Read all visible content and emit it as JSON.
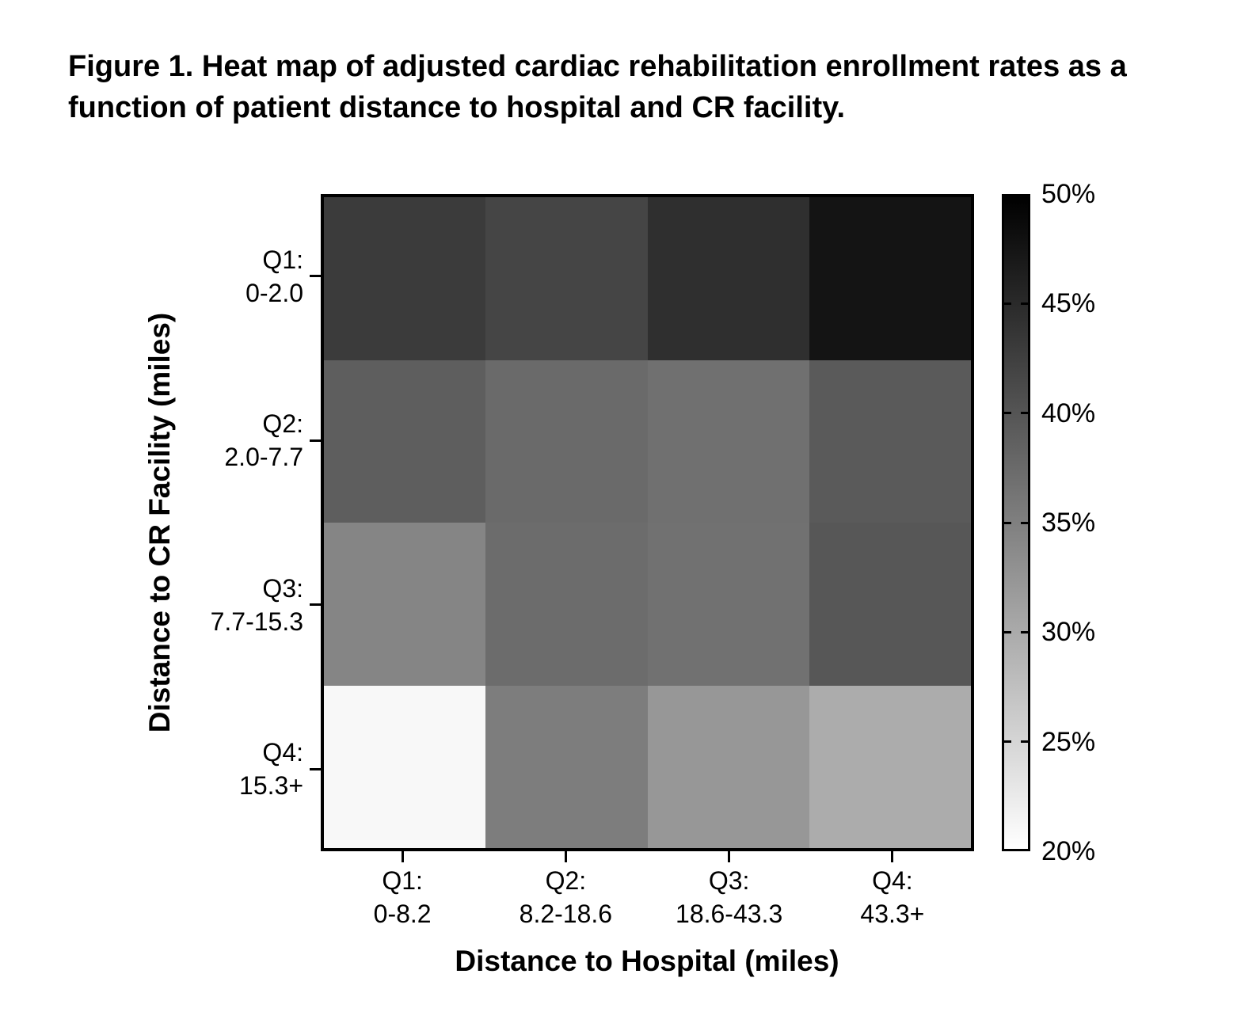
{
  "chart_data": {
    "type": "heatmap",
    "title": "Figure 1. Heat map of adjusted cardiac rehabilitation enrollment rates as a function of patient distance to hospital and CR facility.",
    "xlabel": "Distance to Hospital (miles)",
    "ylabel": "Distance to CR Facility (miles)",
    "x_tick_labels": [
      [
        "Q1:",
        "0-8.2"
      ],
      [
        "Q2:",
        "8.2-18.6"
      ],
      [
        "Q3:",
        "18.6-43.3"
      ],
      [
        "Q4:",
        "43.3+"
      ]
    ],
    "y_tick_labels": [
      [
        "Q1:",
        "0-2.0"
      ],
      [
        "Q2:",
        "2.0-7.7"
      ],
      [
        "Q3:",
        "7.7-15.3"
      ],
      [
        "Q4:",
        "15.3+"
      ]
    ],
    "values_percent": [
      [
        43.1,
        41.9,
        44.5,
        47.6
      ],
      [
        38.9,
        37.5,
        36.8,
        39.4
      ],
      [
        34.4,
        37.3,
        36.7,
        39.8
      ],
      [
        20.8,
        35.3,
        32.2,
        29.8
      ]
    ],
    "grid": "off",
    "colorbar": {
      "position": "right",
      "min_value": 20,
      "max_value": 50,
      "min_color": "#ffffff",
      "max_color": "#000000",
      "tick_values": [
        50,
        45,
        40,
        35,
        30,
        25,
        20
      ],
      "tick_labels": [
        "50%",
        "45%",
        "40%",
        "35%",
        "30%",
        "25%",
        "20%"
      ]
    }
  }
}
